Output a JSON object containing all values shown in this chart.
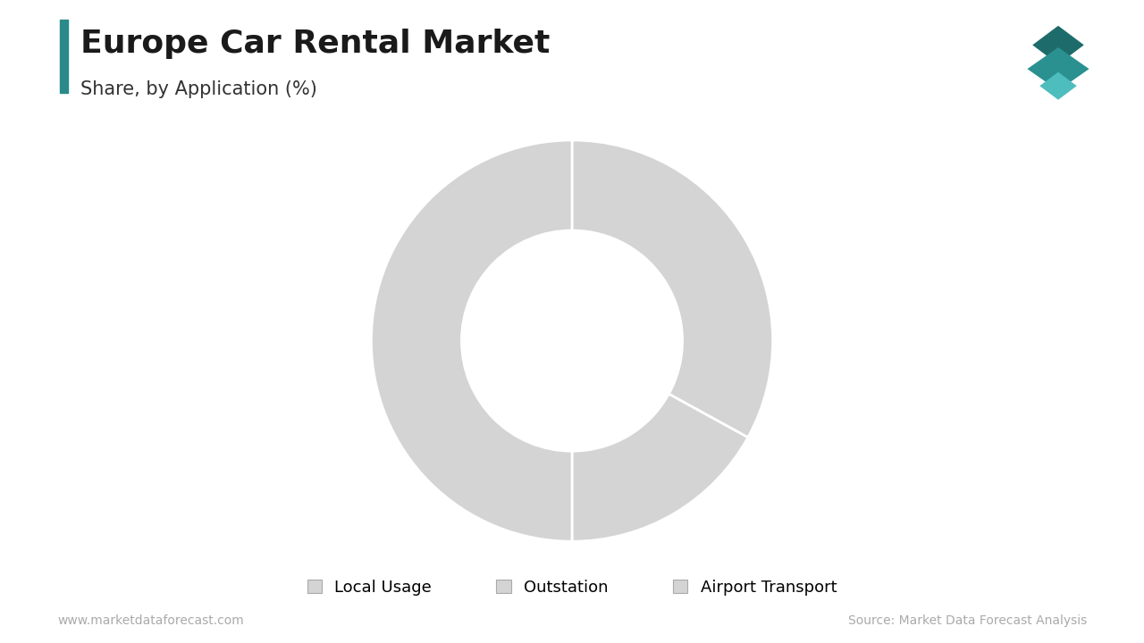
{
  "title": "Europe Car Rental Market",
  "subtitle": "Share, by Application (%)",
  "segments": [
    "Local Usage",
    "Outstation",
    "Airport Transport"
  ],
  "values": [
    33,
    17,
    50
  ],
  "colors": [
    "#d4d4d4",
    "#d4d4d4",
    "#d4d4d4"
  ],
  "wedge_edge_color": "#ffffff",
  "wedge_edge_width": 2.0,
  "donut_hole": 0.55,
  "bg_color": "#ffffff",
  "title_color": "#1a1a1a",
  "subtitle_color": "#333333",
  "title_fontsize": 26,
  "subtitle_fontsize": 15,
  "legend_fontsize": 13,
  "footer_left": "www.marketdataforecast.com",
  "footer_right": "Source: Market Data Forecast Analysis",
  "footer_color": "#aaaaaa",
  "footer_fontsize": 10,
  "left_bar_color": "#2a8a8a",
  "start_angle": 90
}
